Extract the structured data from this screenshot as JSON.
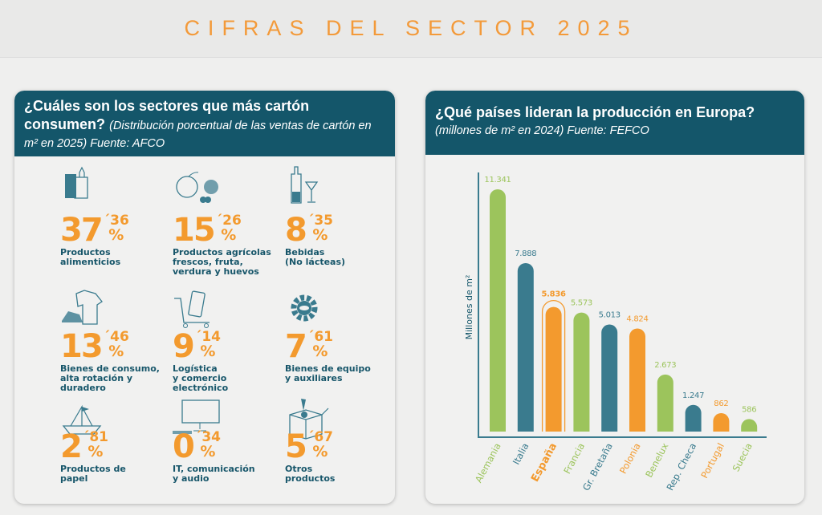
{
  "header": {
    "title": "CIFRAS DEL SECTOR 2025"
  },
  "left": {
    "question": "¿Cuáles son los sectores que más cartón consumen?",
    "subtitle": "(Distribución porcentual de las ventas de cartón en m² en 2025) Fuente: AFCO",
    "sectors": [
      {
        "int": "37",
        "dec": "´36",
        "pct": "%",
        "label": "Productos\nalimenticios",
        "icon": "food-bags-icon"
      },
      {
        "int": "15",
        "dec": "´26",
        "pct": "%",
        "label": "Productos agrícolas\nfrescos, fruta,\nverdura y huevos",
        "icon": "fruit-icon"
      },
      {
        "int": "8",
        "dec": "´35",
        "pct": "%",
        "label": "Bebidas\n(No lácteas)",
        "icon": "bottle-glass-icon"
      },
      {
        "int": "13",
        "dec": "´46",
        "pct": "%",
        "label": "Bienes de consumo,\nalta rotación y\nduradero",
        "icon": "shirt-sneaker-icon"
      },
      {
        "int": "9",
        "dec": "´14",
        "pct": "%",
        "label": "Logística\ny comercio\nelectrónico",
        "icon": "cart-phone-icon"
      },
      {
        "int": "7",
        "dec": "´61",
        "pct": "%",
        "label": "Bienes de equipo\ny auxiliares",
        "icon": "gear-icon"
      },
      {
        "int": "2",
        "dec": "´81",
        "pct": "%",
        "label": "Productos de\npapel",
        "icon": "paper-boat-icon"
      },
      {
        "int": "0",
        "dec": "´34",
        "pct": "%",
        "label": "IT, comunicación\ny audio",
        "icon": "computer-icon"
      },
      {
        "int": "5",
        "dec": "´67",
        "pct": "%",
        "label": "Otros\nproductos",
        "icon": "open-box-icon"
      }
    ]
  },
  "right": {
    "question": "¿Qué países lideran la producción en Europa?",
    "subtitle": "(millones de m² en 2024) Fuente: FEFCO"
  },
  "colors": {
    "orange": "#f39a2e",
    "teal": "#3a7b8e",
    "green": "#9cc45c",
    "dark": "#14566a"
  },
  "chart_data": {
    "type": "bar",
    "ylabel": "Millones de m²",
    "categories": [
      "Alemania",
      "Italia",
      "España",
      "Francia",
      "Gr. Bretaña",
      "Polonia",
      "Benelux",
      "Rep. Checa",
      "Portugal",
      "Suecia"
    ],
    "values": [
      11341,
      7888,
      5836,
      5573,
      5013,
      4824,
      2673,
      1247,
      862,
      586
    ],
    "value_labels": [
      "11.341",
      "7.888",
      "5.836",
      "5.573",
      "5.013",
      "4.824",
      "2.673",
      "1.247",
      "862",
      "586"
    ],
    "bar_colors": [
      "green",
      "teal",
      "orange",
      "green",
      "teal",
      "orange",
      "green",
      "teal",
      "orange",
      "green"
    ],
    "highlight": "España",
    "ylim": [
      0,
      11341
    ],
    "grid": false,
    "legend": "none"
  }
}
